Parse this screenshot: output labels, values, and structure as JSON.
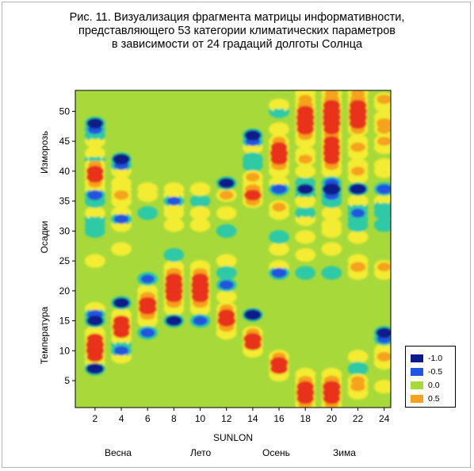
{
  "title_lines": [
    "Рис. 11. Визуализация фрагмента матрицы информативности,",
    "представляющего 53 категории климатических параметров",
    "в зависимости от 24 градаций долготы Солнца"
  ],
  "colors": {
    "background": "#a8d93a",
    "neg1": "#0a1a8a",
    "neg05": "#2255dd",
    "cyan": "#2ec9a5",
    "zero": "#a8d93a",
    "yellow": "#f3ec30",
    "pos05": "#f5a21d",
    "red": "#e8311f"
  },
  "chart_data": {
    "type": "heatmap",
    "title": "Рис. 11. Визуализация фрагмента матрицы информативности, представляющего 53 категории климатических параметров в зависимости от 24 градаций долготы Солнца",
    "xlabel": "SUNLON",
    "x_range": [
      1,
      24
    ],
    "y_range": [
      1,
      53
    ],
    "x_ticks": [
      2,
      4,
      6,
      8,
      10,
      12,
      14,
      16,
      18,
      20,
      22,
      24
    ],
    "y_ticks": [
      5,
      10,
      15,
      20,
      25,
      30,
      35,
      40,
      45,
      50
    ],
    "x_groups": [
      "Весна",
      "Лето",
      "Осень",
      "Зима"
    ],
    "y_groups": [
      "Температура",
      "Осадки",
      "Изморозь"
    ],
    "legend": {
      "entries": [
        {
          "label": "-1.0",
          "value": -1.0
        },
        {
          "label": "-0.5",
          "value": -0.5
        },
        {
          "label": "0.0",
          "value": 0.0
        },
        {
          "label": "0.5",
          "value": 0.5
        }
      ],
      "placement": "bottom-right"
    },
    "cells": [
      {
        "x": 2,
        "y": 7,
        "v": -0.9
      },
      {
        "x": 2,
        "y": 8,
        "v": 0.3
      },
      {
        "x": 2,
        "y": 9,
        "v": 0.8
      },
      {
        "x": 2,
        "y": 10,
        "v": 1.0
      },
      {
        "x": 2,
        "y": 11,
        "v": 1.0
      },
      {
        "x": 2,
        "y": 12,
        "v": 0.8
      },
      {
        "x": 2,
        "y": 13,
        "v": 0.3
      },
      {
        "x": 2,
        "y": 15,
        "v": -0.8
      },
      {
        "x": 2,
        "y": 16,
        "v": -0.7
      },
      {
        "x": 2,
        "y": 17,
        "v": 0.2
      },
      {
        "x": 2,
        "y": 25,
        "v": 0.2
      },
      {
        "x": 2,
        "y": 30,
        "v": -0.3
      },
      {
        "x": 2,
        "y": 31,
        "v": -0.4
      },
      {
        "x": 2,
        "y": 32,
        "v": -0.3
      },
      {
        "x": 2,
        "y": 33,
        "v": 0.3
      },
      {
        "x": 2,
        "y": 35,
        "v": -0.4
      },
      {
        "x": 2,
        "y": 36,
        "v": -0.7
      },
      {
        "x": 2,
        "y": 37,
        "v": 0.2
      },
      {
        "x": 2,
        "y": 38,
        "v": 0.5
      },
      {
        "x": 2,
        "y": 39,
        "v": 0.9
      },
      {
        "x": 2,
        "y": 40,
        "v": 0.9
      },
      {
        "x": 2,
        "y": 41,
        "v": 0.5
      },
      {
        "x": 2,
        "y": 42,
        "v": -0.3
      },
      {
        "x": 2,
        "y": 43,
        "v": 0.3
      },
      {
        "x": 2,
        "y": 45,
        "v": 0.3
      },
      {
        "x": 2,
        "y": 46,
        "v": -0.3
      },
      {
        "x": 2,
        "y": 47,
        "v": -0.6
      },
      {
        "x": 2,
        "y": 48,
        "v": -0.8
      },
      {
        "x": 4,
        "y": 9,
        "v": 0.2
      },
      {
        "x": 4,
        "y": 10,
        "v": -0.6
      },
      {
        "x": 4,
        "y": 11,
        "v": -0.3
      },
      {
        "x": 4,
        "y": 12,
        "v": 0.3
      },
      {
        "x": 4,
        "y": 13,
        "v": 0.8
      },
      {
        "x": 4,
        "y": 14,
        "v": 1.0
      },
      {
        "x": 4,
        "y": 15,
        "v": 0.8
      },
      {
        "x": 4,
        "y": 16,
        "v": 0.3
      },
      {
        "x": 4,
        "y": 18,
        "v": -0.8
      },
      {
        "x": 4,
        "y": 27,
        "v": 0.2
      },
      {
        "x": 4,
        "y": 31,
        "v": 0.2
      },
      {
        "x": 4,
        "y": 32,
        "v": -0.6
      },
      {
        "x": 4,
        "y": 33,
        "v": 0.2
      },
      {
        "x": 4,
        "y": 35,
        "v": 0.3
      },
      {
        "x": 4,
        "y": 36,
        "v": 0.6
      },
      {
        "x": 4,
        "y": 37,
        "v": 0.2
      },
      {
        "x": 4,
        "y": 38,
        "v": 0.3
      },
      {
        "x": 4,
        "y": 40,
        "v": 0.3
      },
      {
        "x": 4,
        "y": 41,
        "v": -0.6
      },
      {
        "x": 4,
        "y": 42,
        "v": -0.9
      },
      {
        "x": 6,
        "y": 13,
        "v": -0.6
      },
      {
        "x": 6,
        "y": 15,
        "v": 0.3
      },
      {
        "x": 6,
        "y": 16,
        "v": 0.7
      },
      {
        "x": 6,
        "y": 17,
        "v": 1.0
      },
      {
        "x": 6,
        "y": 18,
        "v": 1.0
      },
      {
        "x": 6,
        "y": 19,
        "v": 0.7
      },
      {
        "x": 6,
        "y": 20,
        "v": 0.3
      },
      {
        "x": 6,
        "y": 22,
        "v": -0.5
      },
      {
        "x": 6,
        "y": 33,
        "v": -0.2
      },
      {
        "x": 6,
        "y": 36,
        "v": 0.2
      },
      {
        "x": 6,
        "y": 37,
        "v": 0.3
      },
      {
        "x": 8,
        "y": 15,
        "v": -0.8
      },
      {
        "x": 8,
        "y": 17,
        "v": 0.3
      },
      {
        "x": 8,
        "y": 18,
        "v": 0.7
      },
      {
        "x": 8,
        "y": 19,
        "v": 0.9
      },
      {
        "x": 8,
        "y": 20,
        "v": 1.0
      },
      {
        "x": 8,
        "y": 21,
        "v": 1.0
      },
      {
        "x": 8,
        "y": 22,
        "v": 0.9
      },
      {
        "x": 8,
        "y": 23,
        "v": 0.7
      },
      {
        "x": 8,
        "y": 24,
        "v": 0.3
      },
      {
        "x": 8,
        "y": 26,
        "v": -0.3
      },
      {
        "x": 8,
        "y": 31,
        "v": 0.3
      },
      {
        "x": 8,
        "y": 33,
        "v": 0.3
      },
      {
        "x": 8,
        "y": 34,
        "v": 0.2
      },
      {
        "x": 8,
        "y": 35,
        "v": -0.5
      },
      {
        "x": 8,
        "y": 36,
        "v": 0.2
      },
      {
        "x": 8,
        "y": 37,
        "v": 0.3
      },
      {
        "x": 10,
        "y": 15,
        "v": -0.6
      },
      {
        "x": 10,
        "y": 17,
        "v": 0.3
      },
      {
        "x": 10,
        "y": 18,
        "v": 0.7
      },
      {
        "x": 10,
        "y": 19,
        "v": 0.9
      },
      {
        "x": 10,
        "y": 20,
        "v": 1.0
      },
      {
        "x": 10,
        "y": 21,
        "v": 1.0
      },
      {
        "x": 10,
        "y": 22,
        "v": 0.9
      },
      {
        "x": 10,
        "y": 23,
        "v": 0.6
      },
      {
        "x": 10,
        "y": 24,
        "v": 0.3
      },
      {
        "x": 10,
        "y": 31,
        "v": 0.3
      },
      {
        "x": 10,
        "y": 33,
        "v": 0.4
      },
      {
        "x": 10,
        "y": 35,
        "v": -0.2
      },
      {
        "x": 10,
        "y": 37,
        "v": 0.3
      },
      {
        "x": 12,
        "y": 13,
        "v": 0.3
      },
      {
        "x": 12,
        "y": 14,
        "v": 0.7
      },
      {
        "x": 12,
        "y": 15,
        "v": 1.0
      },
      {
        "x": 12,
        "y": 16,
        "v": 0.9
      },
      {
        "x": 12,
        "y": 17,
        "v": 0.5
      },
      {
        "x": 12,
        "y": 19,
        "v": 0.3
      },
      {
        "x": 12,
        "y": 21,
        "v": -0.6
      },
      {
        "x": 12,
        "y": 23,
        "v": -0.3
      },
      {
        "x": 12,
        "y": 25,
        "v": 0.2
      },
      {
        "x": 12,
        "y": 30,
        "v": -0.3
      },
      {
        "x": 12,
        "y": 33,
        "v": 0.4
      },
      {
        "x": 12,
        "y": 36,
        "v": 0.5
      },
      {
        "x": 12,
        "y": 38,
        "v": -0.8
      },
      {
        "x": 14,
        "y": 10,
        "v": 0.4
      },
      {
        "x": 14,
        "y": 11,
        "v": 0.9
      },
      {
        "x": 14,
        "y": 12,
        "v": 1.0
      },
      {
        "x": 14,
        "y": 13,
        "v": 0.5
      },
      {
        "x": 14,
        "y": 16,
        "v": -0.9
      },
      {
        "x": 14,
        "y": 35,
        "v": 0.6
      },
      {
        "x": 14,
        "y": 36,
        "v": 0.9
      },
      {
        "x": 14,
        "y": 37,
        "v": 0.7
      },
      {
        "x": 14,
        "y": 38,
        "v": 0.4
      },
      {
        "x": 14,
        "y": 39,
        "v": 0.5
      },
      {
        "x": 14,
        "y": 41,
        "v": -0.3
      },
      {
        "x": 14,
        "y": 42,
        "v": -0.3
      },
      {
        "x": 14,
        "y": 44,
        "v": 0.2
      },
      {
        "x": 14,
        "y": 45,
        "v": -0.6
      },
      {
        "x": 14,
        "y": 46,
        "v": -0.8
      },
      {
        "x": 16,
        "y": 6,
        "v": 0.4
      },
      {
        "x": 16,
        "y": 7,
        "v": 0.9
      },
      {
        "x": 16,
        "y": 8,
        "v": 1.0
      },
      {
        "x": 16,
        "y": 9,
        "v": 0.5
      },
      {
        "x": 16,
        "y": 23,
        "v": -0.7
      },
      {
        "x": 16,
        "y": 24,
        "v": 0.2
      },
      {
        "x": 16,
        "y": 27,
        "v": 0.2
      },
      {
        "x": 16,
        "y": 29,
        "v": -0.3
      },
      {
        "x": 16,
        "y": 33,
        "v": 0.4
      },
      {
        "x": 16,
        "y": 34,
        "v": 0.5
      },
      {
        "x": 16,
        "y": 37,
        "v": -0.7
      },
      {
        "x": 16,
        "y": 38,
        "v": 0.2
      },
      {
        "x": 16,
        "y": 40,
        "v": 0.4
      },
      {
        "x": 16,
        "y": 41,
        "v": 0.7
      },
      {
        "x": 16,
        "y": 42,
        "v": 0.9
      },
      {
        "x": 16,
        "y": 43,
        "v": 1.0
      },
      {
        "x": 16,
        "y": 44,
        "v": 0.8
      },
      {
        "x": 16,
        "y": 45,
        "v": 0.5
      },
      {
        "x": 16,
        "y": 47,
        "v": 0.3
      },
      {
        "x": 16,
        "y": 50,
        "v": -0.2
      },
      {
        "x": 16,
        "y": 51,
        "v": 0.2
      },
      {
        "x": 18,
        "y": 1,
        "v": 0.5
      },
      {
        "x": 18,
        "y": 2,
        "v": 0.9
      },
      {
        "x": 18,
        "y": 3,
        "v": 1.0
      },
      {
        "x": 18,
        "y": 4,
        "v": 0.9
      },
      {
        "x": 18,
        "y": 5,
        "v": 0.6
      },
      {
        "x": 18,
        "y": 6,
        "v": 0.3
      },
      {
        "x": 18,
        "y": 23,
        "v": -0.4
      },
      {
        "x": 18,
        "y": 26,
        "v": 0.2
      },
      {
        "x": 18,
        "y": 29,
        "v": 0.3
      },
      {
        "x": 18,
        "y": 32,
        "v": 0.3
      },
      {
        "x": 18,
        "y": 33,
        "v": -0.3
      },
      {
        "x": 18,
        "y": 35,
        "v": 0.4
      },
      {
        "x": 18,
        "y": 36,
        "v": -0.3
      },
      {
        "x": 18,
        "y": 37,
        "v": -0.8
      },
      {
        "x": 18,
        "y": 38,
        "v": -0.3
      },
      {
        "x": 18,
        "y": 40,
        "v": 0.3
      },
      {
        "x": 18,
        "y": 42,
        "v": 0.5
      },
      {
        "x": 18,
        "y": 43,
        "v": 0.3
      },
      {
        "x": 18,
        "y": 45,
        "v": 0.3
      },
      {
        "x": 18,
        "y": 46,
        "v": 0.6
      },
      {
        "x": 18,
        "y": 47,
        "v": 0.9
      },
      {
        "x": 18,
        "y": 48,
        "v": 1.0
      },
      {
        "x": 18,
        "y": 49,
        "v": 1.0
      },
      {
        "x": 18,
        "y": 50,
        "v": 0.9
      },
      {
        "x": 18,
        "y": 51,
        "v": 0.7
      },
      {
        "x": 18,
        "y": 52,
        "v": 0.5
      },
      {
        "x": 18,
        "y": 53,
        "v": 0.3
      },
      {
        "x": 20,
        "y": 1,
        "v": 0.5
      },
      {
        "x": 20,
        "y": 2,
        "v": 0.9
      },
      {
        "x": 20,
        "y": 3,
        "v": 1.0
      },
      {
        "x": 20,
        "y": 4,
        "v": 1.0
      },
      {
        "x": 20,
        "y": 5,
        "v": 0.7
      },
      {
        "x": 20,
        "y": 6,
        "v": 0.3
      },
      {
        "x": 20,
        "y": 23,
        "v": -0.3
      },
      {
        "x": 20,
        "y": 27,
        "v": 0.2
      },
      {
        "x": 20,
        "y": 30,
        "v": 0.3
      },
      {
        "x": 20,
        "y": 31,
        "v": 0.3
      },
      {
        "x": 20,
        "y": 33,
        "v": 0.3
      },
      {
        "x": 20,
        "y": 35,
        "v": -0.3
      },
      {
        "x": 20,
        "y": 36,
        "v": -0.6
      },
      {
        "x": 20,
        "y": 37,
        "v": -1.0
      },
      {
        "x": 20,
        "y": 38,
        "v": -0.6
      },
      {
        "x": 20,
        "y": 40,
        "v": 0.3
      },
      {
        "x": 20,
        "y": 41,
        "v": 0.6
      },
      {
        "x": 20,
        "y": 42,
        "v": 0.8
      },
      {
        "x": 20,
        "y": 43,
        "v": 0.9
      },
      {
        "x": 20,
        "y": 44,
        "v": 0.9
      },
      {
        "x": 20,
        "y": 45,
        "v": 0.8
      },
      {
        "x": 20,
        "y": 46,
        "v": 0.7
      },
      {
        "x": 20,
        "y": 47,
        "v": 0.8
      },
      {
        "x": 20,
        "y": 48,
        "v": 1.0
      },
      {
        "x": 20,
        "y": 49,
        "v": 1.0
      },
      {
        "x": 20,
        "y": 50,
        "v": 1.0
      },
      {
        "x": 20,
        "y": 51,
        "v": 0.9
      },
      {
        "x": 20,
        "y": 52,
        "v": 0.7
      },
      {
        "x": 20,
        "y": 53,
        "v": 0.5
      },
      {
        "x": 22,
        "y": 3,
        "v": 0.3
      },
      {
        "x": 22,
        "y": 4,
        "v": 0.6
      },
      {
        "x": 22,
        "y": 5,
        "v": 0.5
      },
      {
        "x": 22,
        "y": 7,
        "v": -0.3
      },
      {
        "x": 22,
        "y": 9,
        "v": 0.2
      },
      {
        "x": 22,
        "y": 23,
        "v": 0.4
      },
      {
        "x": 22,
        "y": 24,
        "v": 0.7
      },
      {
        "x": 22,
        "y": 25,
        "v": 0.4
      },
      {
        "x": 22,
        "y": 29,
        "v": 0.3
      },
      {
        "x": 22,
        "y": 31,
        "v": -0.3
      },
      {
        "x": 22,
        "y": 32,
        "v": -0.3
      },
      {
        "x": 22,
        "y": 33,
        "v": -0.5
      },
      {
        "x": 22,
        "y": 34,
        "v": -0.3
      },
      {
        "x": 22,
        "y": 35,
        "v": 0.3
      },
      {
        "x": 22,
        "y": 37,
        "v": -0.9
      },
      {
        "x": 22,
        "y": 39,
        "v": 0.3
      },
      {
        "x": 22,
        "y": 40,
        "v": 0.5
      },
      {
        "x": 22,
        "y": 41,
        "v": 0.3
      },
      {
        "x": 22,
        "y": 43,
        "v": 0.4
      },
      {
        "x": 22,
        "y": 44,
        "v": 0.6
      },
      {
        "x": 22,
        "y": 45,
        "v": 0.4
      },
      {
        "x": 22,
        "y": 47,
        "v": 0.6
      },
      {
        "x": 22,
        "y": 48,
        "v": 0.9
      },
      {
        "x": 22,
        "y": 49,
        "v": 1.0
      },
      {
        "x": 22,
        "y": 50,
        "v": 1.0
      },
      {
        "x": 22,
        "y": 51,
        "v": 0.9
      },
      {
        "x": 22,
        "y": 52,
        "v": 0.7
      },
      {
        "x": 22,
        "y": 53,
        "v": 0.5
      },
      {
        "x": 24,
        "y": 4,
        "v": 0.3
      },
      {
        "x": 24,
        "y": 8,
        "v": 0.4
      },
      {
        "x": 24,
        "y": 9,
        "v": 0.6
      },
      {
        "x": 24,
        "y": 10,
        "v": 0.3
      },
      {
        "x": 24,
        "y": 12,
        "v": -0.6
      },
      {
        "x": 24,
        "y": 13,
        "v": -0.8
      },
      {
        "x": 24,
        "y": 23,
        "v": 0.3
      },
      {
        "x": 24,
        "y": 24,
        "v": 0.5
      },
      {
        "x": 24,
        "y": 31,
        "v": -0.3
      },
      {
        "x": 24,
        "y": 33,
        "v": -0.3
      },
      {
        "x": 24,
        "y": 34,
        "v": -0.4
      },
      {
        "x": 24,
        "y": 35,
        "v": 0.3
      },
      {
        "x": 24,
        "y": 37,
        "v": -0.7
      },
      {
        "x": 24,
        "y": 40,
        "v": 0.4
      },
      {
        "x": 24,
        "y": 41,
        "v": 0.3
      },
      {
        "x": 24,
        "y": 44,
        "v": 0.4
      },
      {
        "x": 24,
        "y": 45,
        "v": 0.5
      },
      {
        "x": 24,
        "y": 47,
        "v": 0.5
      },
      {
        "x": 24,
        "y": 48,
        "v": 0.7
      },
      {
        "x": 24,
        "y": 49,
        "v": 0.4
      },
      {
        "x": 24,
        "y": 51,
        "v": 0.4
      },
      {
        "x": 24,
        "y": 52,
        "v": 0.6
      }
    ]
  }
}
